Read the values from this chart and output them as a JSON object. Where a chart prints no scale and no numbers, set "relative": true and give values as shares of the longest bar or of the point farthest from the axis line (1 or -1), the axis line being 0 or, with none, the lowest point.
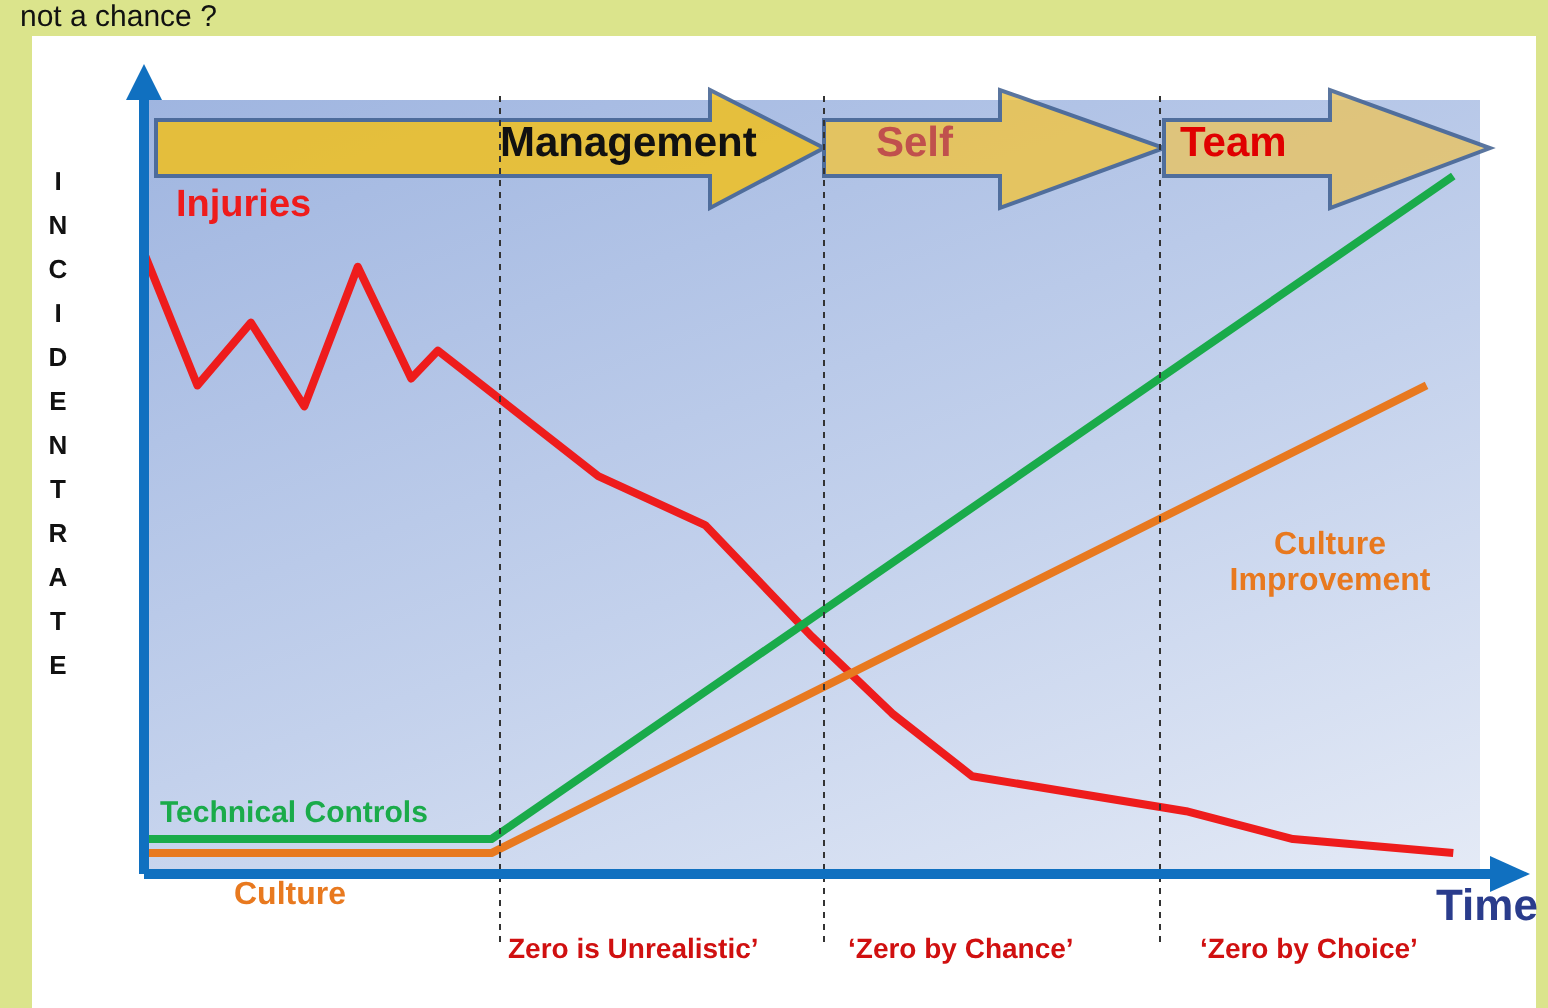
{
  "chart_data": {
    "type": "line",
    "title": "not a chance ?",
    "xlabel": "Time",
    "ylabel": "INCIDENT RATE",
    "relative": true,
    "legend": false,
    "marker": "none",
    "categories": [
      null,
      null,
      null,
      null,
      null,
      null,
      null,
      null,
      null,
      null,
      null,
      null,
      null,
      null,
      null,
      null,
      null,
      null,
      null,
      null,
      null,
      null,
      null,
      null,
      null,
      null,
      null,
      null,
      null,
      null,
      null,
      null,
      null,
      null,
      null,
      null,
      null,
      null,
      null,
      null,
      null,
      null,
      null,
      null,
      null,
      null,
      null,
      null,
      null,
      null,
      null
    ],
    "series": [
      {
        "name": "Injuries",
        "color": "#ee1c1c",
        "values": [
          0.89,
          null,
          0.7,
          null,
          0.79,
          null,
          0.67,
          null,
          0.87,
          null,
          0.71,
          0.75,
          null,
          0.69,
          null,
          null,
          null,
          0.57,
          null,
          null,
          null,
          0.5,
          null,
          null,
          null,
          0.34,
          null,
          null,
          0.23,
          null,
          null,
          0.14,
          null,
          null,
          null,
          null,
          null,
          null,
          null,
          0.09,
          null,
          null,
          null,
          0.05,
          null,
          null,
          null,
          null,
          null,
          0.03,
          null
        ]
      },
      {
        "name": "Technical Controls",
        "color": "#1aab4a",
        "values": [
          0.05,
          null,
          null,
          null,
          null,
          null,
          null,
          null,
          null,
          null,
          null,
          null,
          null,
          0.05,
          null,
          null,
          null,
          null,
          null,
          null,
          null,
          null,
          null,
          null,
          null,
          null,
          null,
          null,
          null,
          null,
          null,
          null,
          null,
          null,
          null,
          null,
          null,
          null,
          null,
          null,
          null,
          null,
          null,
          null,
          null,
          null,
          null,
          null,
          null,
          1,
          null
        ]
      },
      {
        "name": "Culture",
        "color": "#e8791f",
        "values": [
          0.03,
          null,
          null,
          null,
          null,
          null,
          null,
          null,
          null,
          null,
          null,
          null,
          null,
          0.03,
          null,
          null,
          null,
          null,
          null,
          null,
          null,
          null,
          null,
          null,
          null,
          null,
          null,
          null,
          null,
          null,
          null,
          null,
          null,
          null,
          null,
          null,
          null,
          null,
          null,
          null,
          null,
          null,
          null,
          null,
          null,
          null,
          null,
          null,
          0.7,
          null,
          null
        ]
      }
    ],
    "annotations": [
      "Management",
      "Self",
      "Team",
      "Culture Improvement",
      "Zero is Unrealistic’",
      "‘Zero by Chance’",
      "‘Zero by Choice’"
    ]
  }
}
